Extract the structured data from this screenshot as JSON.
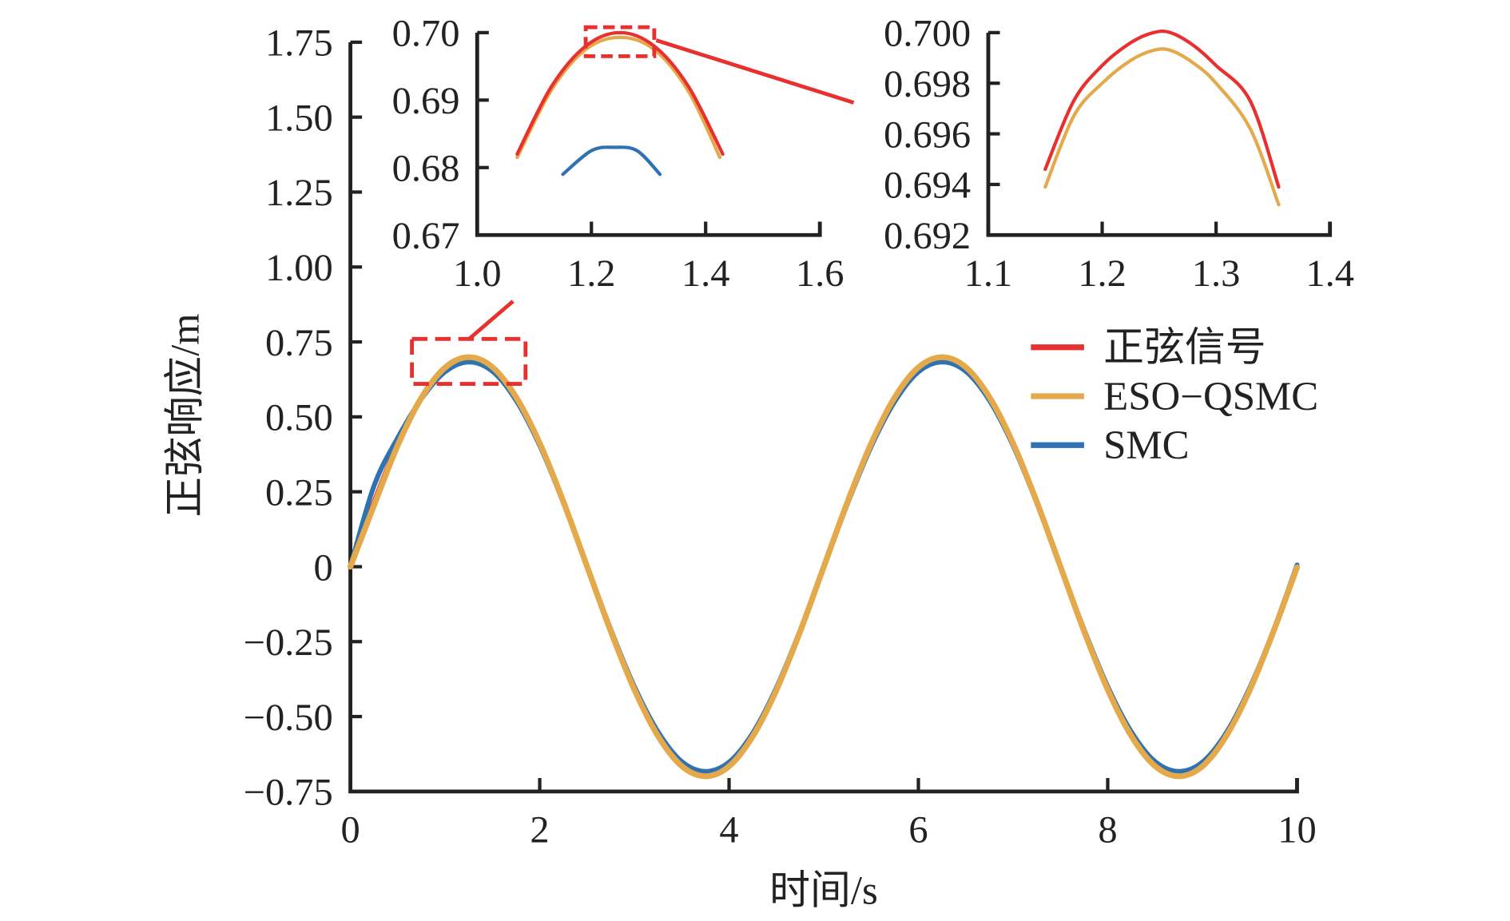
{
  "chart_data": [
    {
      "id": "main",
      "type": "line",
      "xlabel": "时间/s",
      "ylabel": "正弦响应/m",
      "xlim": [
        0,
        10
      ],
      "ylim": [
        -0.75,
        1.75
      ],
      "xticks": [
        0,
        2,
        4,
        6,
        8,
        10
      ],
      "xtick_labels": [
        "0",
        "2",
        "4",
        "6",
        "8",
        "10"
      ],
      "yticks": [
        -0.75,
        -0.5,
        -0.25,
        0,
        0.25,
        0.5,
        0.75,
        1.0,
        1.25,
        1.5,
        1.75
      ],
      "ytick_labels": [
        "−0.75",
        "−0.50",
        "−0.25",
        "0",
        "0.25",
        "0.50",
        "0.75",
        "1.00",
        "1.25",
        "1.50",
        "1.75"
      ],
      "legend_position": "right",
      "zoom_box": {
        "x": [
          0.65,
          1.85
        ],
        "y": [
          0.61,
          0.76
        ]
      },
      "x_step": 0.25,
      "series": [
        {
          "name": "正弦信号",
          "color": "#e8302e",
          "values": [
            0,
            0.216,
            0.411,
            0.566,
            0.666,
            0.7,
            0.666,
            0.566,
            0.411,
            0.216,
            0,
            -0.216,
            -0.411,
            -0.566,
            -0.666,
            -0.7,
            -0.666,
            -0.566,
            -0.411,
            -0.216,
            0,
            0.216,
            0.411,
            0.566,
            0.666,
            0.7,
            0.666,
            0.566,
            0.411,
            0.216,
            0,
            -0.216,
            -0.411,
            -0.566,
            -0.666,
            -0.7,
            -0.666,
            -0.566,
            -0.411,
            -0.216,
            0
          ]
        },
        {
          "name": "ESO−QSMC",
          "color": "#e3a94a",
          "values": [
            0,
            0.205,
            0.405,
            0.563,
            0.664,
            0.699,
            0.666,
            0.566,
            0.412,
            0.217,
            0.001,
            -0.215,
            -0.41,
            -0.565,
            -0.665,
            -0.699,
            -0.666,
            -0.566,
            -0.412,
            -0.217,
            -0.001,
            0.215,
            0.41,
            0.565,
            0.665,
            0.699,
            0.666,
            0.566,
            0.412,
            0.217,
            0.001,
            -0.215,
            -0.41,
            -0.565,
            -0.665,
            -0.699,
            -0.666,
            -0.566,
            -0.412,
            -0.217,
            -0.002
          ]
        },
        {
          "name": "SMC",
          "color": "#2f72b3",
          "values": [
            0,
            0.27,
            0.43,
            0.56,
            0.65,
            0.683,
            0.652,
            0.555,
            0.404,
            0.213,
            0.002,
            -0.209,
            -0.4,
            -0.551,
            -0.65,
            -0.683,
            -0.652,
            -0.555,
            -0.404,
            -0.213,
            -0.002,
            0.209,
            0.4,
            0.551,
            0.65,
            0.683,
            0.652,
            0.555,
            0.404,
            0.213,
            0.002,
            -0.209,
            -0.4,
            -0.551,
            -0.65,
            -0.683,
            -0.652,
            -0.555,
            -0.404,
            -0.213,
            0.006
          ]
        }
      ]
    },
    {
      "id": "inset1",
      "type": "line",
      "xlim": [
        1.0,
        1.6
      ],
      "ylim": [
        0.67,
        0.7
      ],
      "xticks": [
        1.0,
        1.2,
        1.4,
        1.6
      ],
      "xtick_labels": [
        "1.0",
        "1.2",
        "1.4",
        "1.6"
      ],
      "yticks": [
        0.67,
        0.68,
        0.69,
        0.7
      ],
      "ytick_labels": [
        "0.67",
        "0.68",
        "0.69",
        "0.70"
      ],
      "zoom_box": {
        "x": [
          1.19,
          1.31
        ],
        "y": [
          0.6965,
          0.7008
        ]
      },
      "series": [
        {
          "name": "正弦信号",
          "color": "#e8302e",
          "x": [
            1.07,
            1.13,
            1.19,
            1.25,
            1.31,
            1.37,
            1.43
          ],
          "y": [
            0.682,
            0.692,
            0.698,
            0.7,
            0.698,
            0.692,
            0.682
          ]
        },
        {
          "name": "ESO−QSMC",
          "color": "#e3a94a",
          "x": [
            1.07,
            1.13,
            1.19,
            1.25,
            1.31,
            1.37,
            1.425
          ],
          "y": [
            0.6815,
            0.6915,
            0.6975,
            0.6993,
            0.6975,
            0.6913,
            0.6815
          ]
        },
        {
          "name": "SMC",
          "color": "#2f72b3",
          "x": [
            1.15,
            1.2,
            1.24,
            1.28,
            1.32
          ],
          "y": [
            0.679,
            0.6825,
            0.683,
            0.6825,
            0.679
          ]
        }
      ]
    },
    {
      "id": "inset2",
      "type": "line",
      "xlim": [
        1.1,
        1.4
      ],
      "ylim": [
        0.692,
        0.7
      ],
      "xticks": [
        1.1,
        1.2,
        1.3,
        1.4
      ],
      "xtick_labels": [
        "1.1",
        "1.2",
        "1.3",
        "1.4"
      ],
      "yticks": [
        0.692,
        0.694,
        0.696,
        0.698,
        0.7
      ],
      "ytick_labels": [
        "0.692",
        "0.694",
        "0.696",
        "0.698",
        "0.700"
      ],
      "series": [
        {
          "name": "正弦信号",
          "color": "#e8302e",
          "x": [
            1.15,
            1.175,
            1.2,
            1.225,
            1.245,
            1.26,
            1.28,
            1.3,
            1.33,
            1.355
          ],
          "y": [
            0.6946,
            0.6973,
            0.6987,
            0.6996,
            0.7,
            0.7,
            0.6995,
            0.6987,
            0.6973,
            0.6939
          ]
        },
        {
          "name": "ESO−QSMC",
          "color": "#e3a94a",
          "x": [
            1.15,
            1.175,
            1.2,
            1.225,
            1.245,
            1.26,
            1.28,
            1.3,
            1.33,
            1.355
          ],
          "y": [
            0.6939,
            0.6967,
            0.698,
            0.6989,
            0.6993,
            0.6993,
            0.6988,
            0.698,
            0.6962,
            0.6932
          ]
        }
      ]
    }
  ]
}
